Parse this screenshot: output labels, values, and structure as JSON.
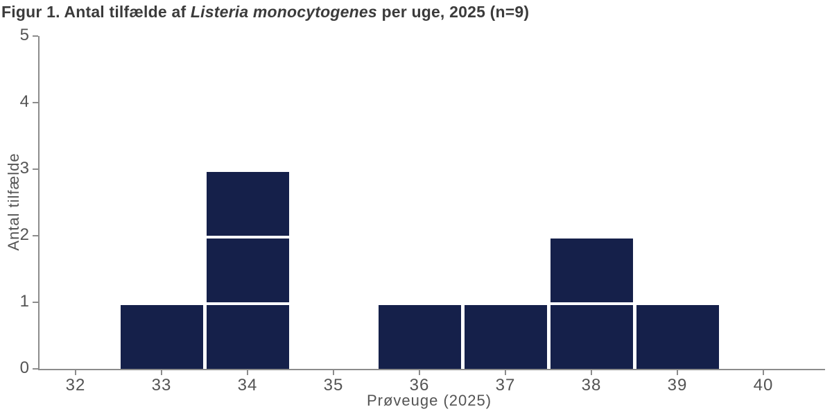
{
  "title": {
    "prefix": "Figur 1. Antal tilfælde af ",
    "italic": "Listeria monocytogenes",
    "suffix": " per uge, 2025 (n=9)"
  },
  "chart_data": {
    "type": "bar",
    "subtype": "epidemic-curve-unit-blocks",
    "title": "Figur 1. Antal tilfælde af Listeria monocytogenes per uge, 2025 (n=9)",
    "n_total": 9,
    "xlabel": "Prøveuge (2025)",
    "ylabel": "Antal tilfælde",
    "categories": [
      32,
      33,
      34,
      35,
      36,
      37,
      38,
      39,
      40
    ],
    "values": [
      0,
      1,
      3,
      0,
      1,
      1,
      2,
      1,
      0
    ],
    "ylim": [
      0,
      5
    ],
    "yticks": [
      0,
      1,
      2,
      3,
      4,
      5
    ],
    "grid": false,
    "legend": false,
    "bar_color": "#15204a",
    "bar_separator_color": "#ffffff",
    "axis_color": "#8c8c8c",
    "tick_label_color": "#545454",
    "title_color": "#3b3b3b"
  }
}
